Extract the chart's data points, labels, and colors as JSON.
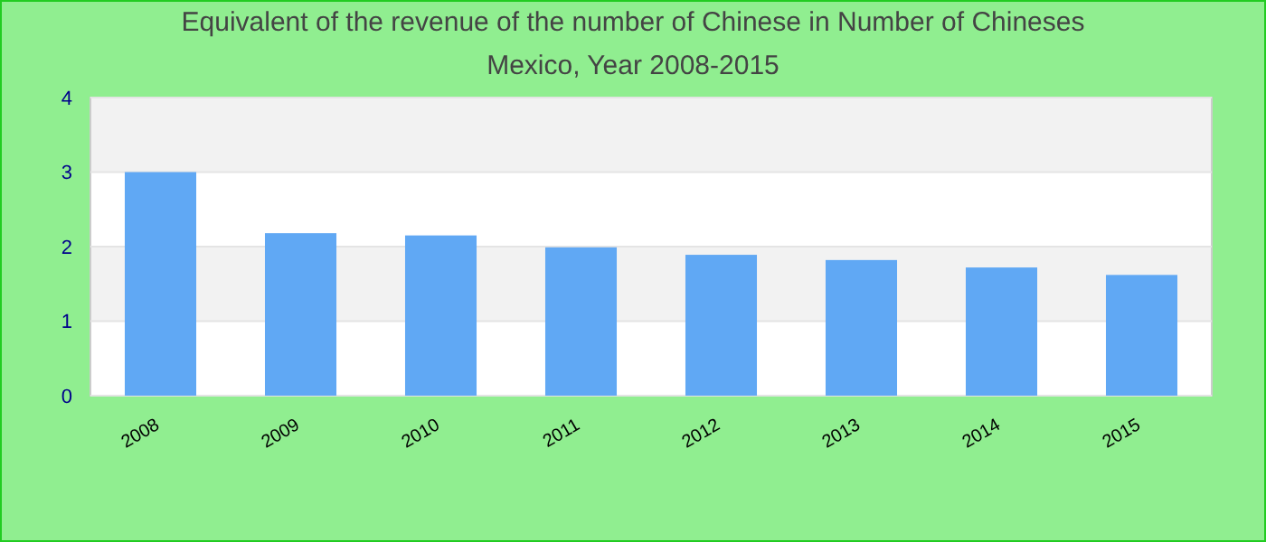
{
  "chart_data": {
    "type": "bar",
    "title": "Equivalent of the revenue of the number of Chinese  in Number of Chineses",
    "subtitle": "Mexico, Year 2008-2015",
    "categories": [
      "2008",
      "2009",
      "2010",
      "2011",
      "2012",
      "2013",
      "2014",
      "2015"
    ],
    "values": [
      3.0,
      2.18,
      2.15,
      1.99,
      1.89,
      1.82,
      1.72,
      1.62
    ],
    "color": "#60a8f4",
    "ylim": [
      0,
      4
    ],
    "yticks": [
      0,
      1,
      2,
      3,
      4
    ],
    "grid": "y"
  }
}
